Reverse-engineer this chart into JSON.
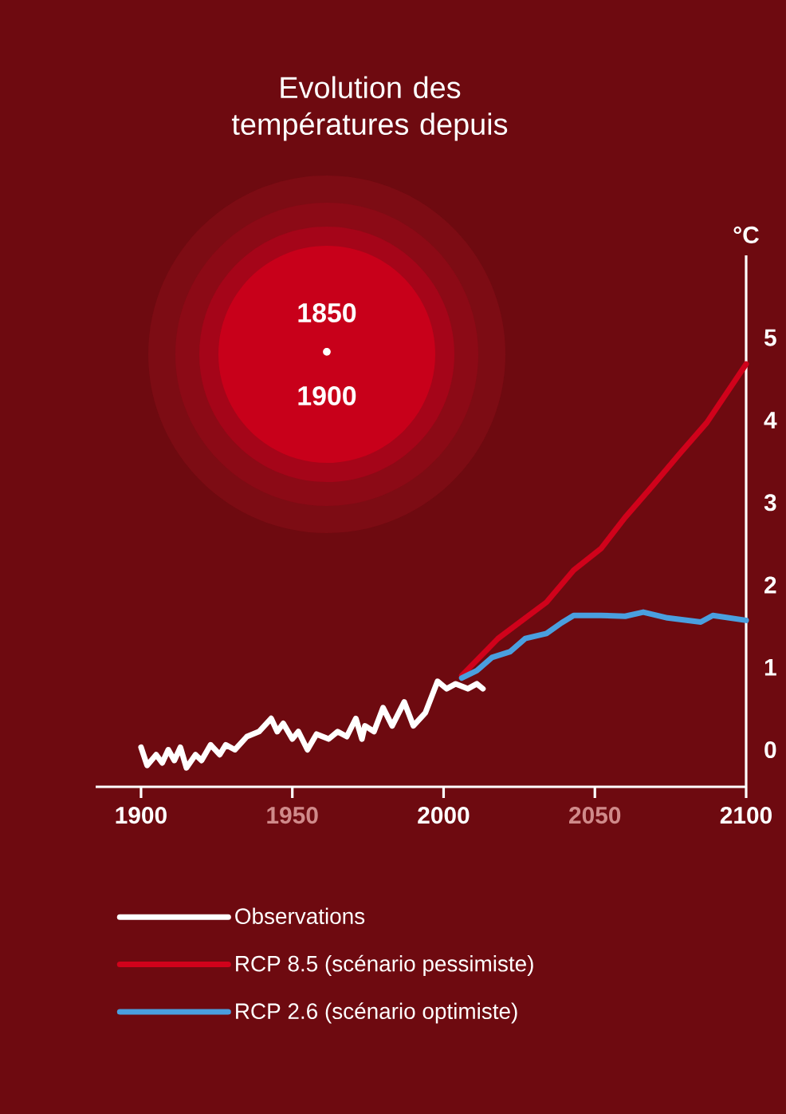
{
  "chart_data": {
    "type": "line",
    "title": "Evolution des températures depuis",
    "annotations": [
      "1850",
      "•",
      "1900"
    ],
    "ylabel": "°C",
    "xlim": [
      1885,
      2100
    ],
    "xticks": [
      1900,
      1950,
      2000,
      2050,
      2100
    ],
    "ylim": [
      -0.45,
      6
    ],
    "yticks": [
      0,
      1,
      2,
      3,
      4,
      5
    ],
    "legend": "bottom",
    "line_style": "solid",
    "series": [
      {
        "name": "Observations",
        "color": "#ffffff",
        "x": [
          1900,
          1902,
          1905,
          1907,
          1909,
          1911,
          1913,
          1915,
          1918,
          1920,
          1923,
          1926,
          1928,
          1931,
          1935,
          1939,
          1943,
          1945,
          1947,
          1950,
          1952,
          1955,
          1958,
          1962,
          1965,
          1968,
          1971,
          1973,
          1974,
          1977,
          1980,
          1983,
          1987,
          1990,
          1994,
          1998,
          2001,
          2004,
          2008,
          2011,
          2013
        ],
        "values": [
          0.03,
          -0.19,
          -0.06,
          -0.16,
          0,
          -0.13,
          0.03,
          -0.22,
          -0.06,
          -0.13,
          0.06,
          -0.06,
          0.06,
          0,
          0.16,
          0.22,
          0.38,
          0.22,
          0.32,
          0.13,
          0.22,
          0,
          0.19,
          0.13,
          0.22,
          0.16,
          0.38,
          0.13,
          0.29,
          0.22,
          0.51,
          0.29,
          0.58,
          0.29,
          0.45,
          0.83,
          0.74,
          0.8,
          0.74,
          0.8,
          0.74
        ]
      },
      {
        "name": "RCP 8.5 (scénario pessimiste)",
        "color": "#d0021b",
        "x": [
          2006,
          2018,
          2034,
          2043,
          2052,
          2060,
          2069,
          2078,
          2087,
          2100
        ],
        "values": [
          0.9,
          1.35,
          1.79,
          2.18,
          2.44,
          2.82,
          3.2,
          3.59,
          3.97,
          4.68
        ]
      },
      {
        "name": "RCP 2.6 (scénario optimiste)",
        "color": "#4a9fdf",
        "x": [
          2006,
          2011,
          2016,
          2022,
          2027,
          2034,
          2039,
          2043,
          2052,
          2060,
          2066,
          2074,
          2085,
          2089,
          2100
        ],
        "values": [
          0.87,
          0.96,
          1.12,
          1.19,
          1.35,
          1.41,
          1.54,
          1.63,
          1.63,
          1.62,
          1.67,
          1.6,
          1.55,
          1.63,
          1.57
        ]
      }
    ]
  }
}
